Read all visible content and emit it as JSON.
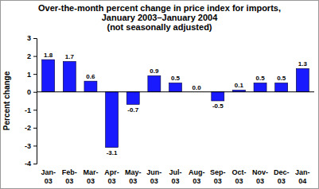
{
  "chart_data": {
    "type": "bar",
    "title": "Over-the-month percent change in price index for imports, January 2003–January 2004",
    "subtitle": "(not seasonally adjusted)",
    "y_label": "Percent change",
    "categories": [
      "Jan-03",
      "Feb-03",
      "Mar-03",
      "Apr-03",
      "May-03",
      "Jun-03",
      "Jul-03",
      "Aug-03",
      "Sep-03",
      "Oct-03",
      "Nov-03",
      "Dec-03",
      "Jan-04"
    ],
    "values": [
      1.8,
      1.7,
      0.6,
      -3.1,
      -0.7,
      0.9,
      0.5,
      0.0,
      -0.5,
      0.1,
      0.5,
      0.5,
      1.3
    ],
    "value_labels": [
      "1.8",
      "1.7",
      "0.6",
      "-3.1",
      "-0.7",
      "0.9",
      "0.5",
      "0.0",
      "-0.5",
      "0.1",
      "0.5",
      "0.5",
      "1.3"
    ],
    "color": "#1a1aff",
    "ylim": [
      -4,
      3
    ],
    "yticks": [
      -4,
      -3,
      -2,
      -1,
      0,
      1,
      2,
      3
    ],
    "data_labels": true,
    "grid": false
  }
}
